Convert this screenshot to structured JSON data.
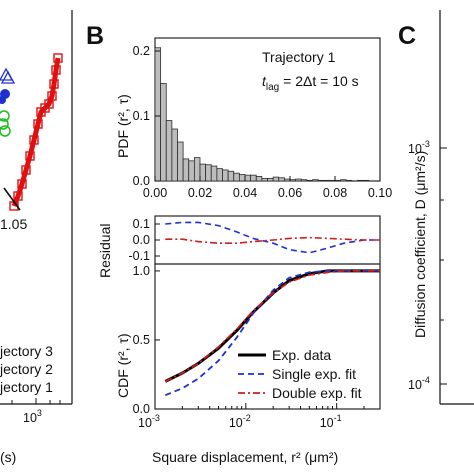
{
  "panels": {
    "left": {
      "annotation": "1.05",
      "xtick_visible": "10",
      "xtick_exp": "3",
      "xlabel_fragment": "(s)",
      "legend": [
        "jectory 3",
        "jectory 2",
        "jectory 1"
      ]
    },
    "b": {
      "letter": "B",
      "annotation_line1": "Trajectory 1",
      "annotation_line2": "t",
      "annotation_lag": "lag",
      "annotation_rest": " = 2Δt = 10 s"
    },
    "c": {
      "letter": "C",
      "ylabel": "Diffusion coefficient, D (μm²/s)",
      "ytick_base": "10",
      "yticks_exp": [
        "-3",
        "-4"
      ]
    }
  },
  "chart_data": [
    {
      "type": "bar",
      "panel": "B-top",
      "xlabel": "",
      "ylabel": "PDF (r², τ)",
      "xlim": [
        0,
        0.1
      ],
      "ylim": [
        0,
        0.22
      ],
      "xticks": [
        "0.00",
        "0.02",
        "0.04",
        "0.06",
        "0.08",
        "0.10"
      ],
      "yticks": [
        "0.0",
        "0.1",
        "0.2"
      ],
      "bin_width": 0.0025,
      "values": [
        0.205,
        0.15,
        0.093,
        0.08,
        0.06,
        0.034,
        0.031,
        0.036,
        0.026,
        0.025,
        0.023,
        0.019,
        0.017,
        0.015,
        0.012,
        0.01,
        0.009,
        0.009,
        0.007,
        0.004,
        0.004,
        0.006,
        0.005,
        0.003,
        0.002,
        0.003,
        0.002,
        0.001,
        0.002,
        0.001,
        0.001,
        0.001,
        0.001,
        0.002,
        0.001,
        0.0,
        0.001,
        0.001
      ]
    },
    {
      "type": "line",
      "panel": "B-middle",
      "ylabel": "Residual",
      "xscale": "log",
      "xlim": [
        0.001,
        0.3
      ],
      "ylim": [
        -0.15,
        0.15
      ],
      "yticks": [
        "0.1",
        "0.0",
        "-0.1"
      ],
      "x": [
        0.0013,
        0.002,
        0.003,
        0.005,
        0.008,
        0.012,
        0.02,
        0.03,
        0.05,
        0.08,
        0.12,
        0.2,
        0.3
      ],
      "series": [
        {
          "name": "Single exp. fit",
          "style": "dash",
          "color": "#1f2fd0",
          "values": [
            0.1,
            0.11,
            0.11,
            0.09,
            0.05,
            0.01,
            -0.02,
            -0.06,
            -0.08,
            -0.05,
            -0.02,
            0.0,
            0.0
          ]
        },
        {
          "name": "Double exp. fit",
          "style": "dashdot",
          "color": "#d01c1c",
          "values": [
            0.005,
            0.005,
            -0.01,
            -0.02,
            -0.02,
            -0.01,
            0.0,
            0.01,
            0.015,
            0.01,
            0.005,
            0.0,
            0.0
          ]
        }
      ]
    },
    {
      "type": "line",
      "panel": "B-bottom",
      "xlabel": "Square displacement, r² (μm²)",
      "ylabel": "CDF (r², τ)",
      "xscale": "log",
      "xlim": [
        0.001,
        0.3
      ],
      "ylim": [
        0,
        1.05
      ],
      "yticks": [
        "0.0",
        "0.5",
        "1.0"
      ],
      "xticks_base": "10",
      "xticks_exp": [
        "-3",
        "-2",
        "-1"
      ],
      "x": [
        0.0013,
        0.002,
        0.003,
        0.005,
        0.008,
        0.012,
        0.02,
        0.03,
        0.05,
        0.08,
        0.12,
        0.2,
        0.3
      ],
      "series": [
        {
          "name": "Exp. data",
          "style": "solid",
          "color": "#000000",
          "values": [
            0.2,
            0.26,
            0.33,
            0.44,
            0.57,
            0.7,
            0.84,
            0.93,
            0.98,
            1.0,
            1.0,
            1.0,
            1.0
          ]
        },
        {
          "name": "Single exp. fit",
          "style": "dash",
          "color": "#1f2fd0",
          "values": [
            0.1,
            0.15,
            0.22,
            0.35,
            0.52,
            0.69,
            0.86,
            0.95,
            0.99,
            1.0,
            1.0,
            1.0,
            1.0
          ]
        },
        {
          "name": "Double exp. fit",
          "style": "dashdot",
          "color": "#d01c1c",
          "values": [
            0.2,
            0.26,
            0.33,
            0.45,
            0.58,
            0.71,
            0.84,
            0.92,
            0.97,
            0.99,
            1.0,
            1.0,
            1.0
          ]
        }
      ],
      "legend": [
        "Exp. data",
        "Single exp. fit",
        "Double exp. fit"
      ],
      "legend_position": "bottom-right"
    }
  ]
}
